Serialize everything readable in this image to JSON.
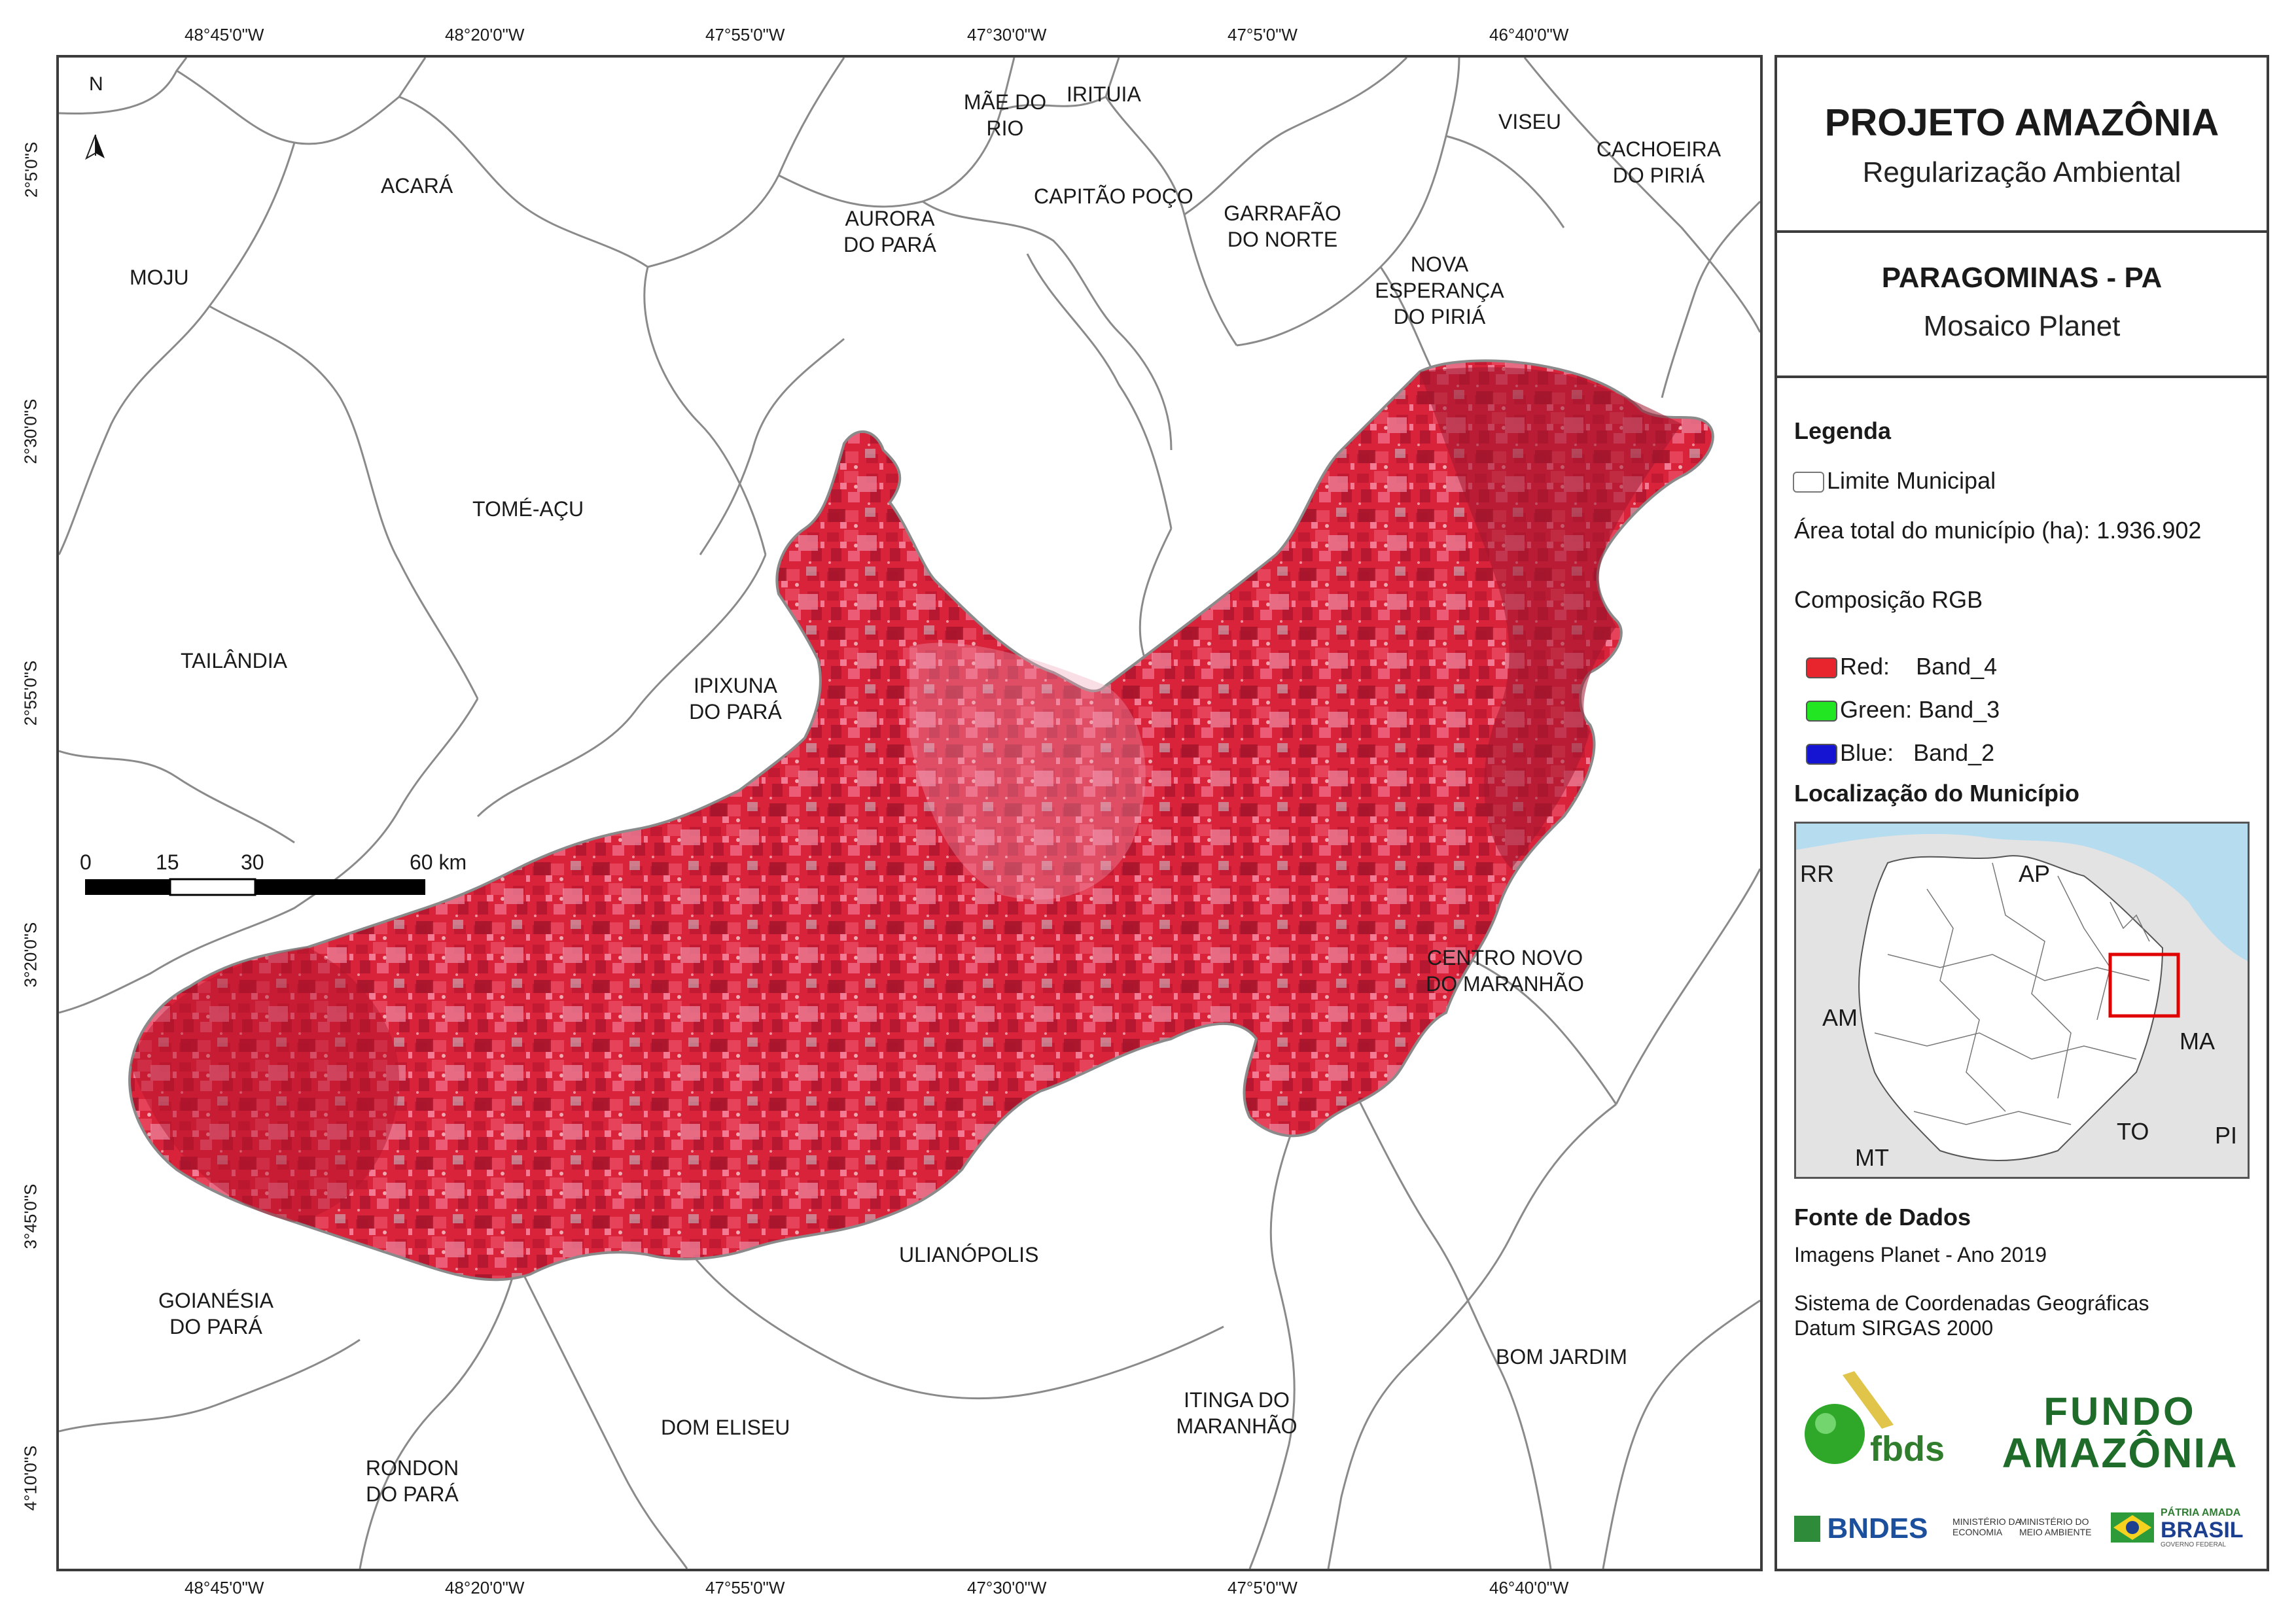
{
  "map": {
    "top_coords": [
      "48°45'0\"W",
      "48°20'0\"W",
      "47°55'0\"W",
      "47°30'0\"W",
      "47°5'0\"W",
      "46°40'0\"W"
    ],
    "bottom_coords": [
      "48°45'0\"W",
      "48°20'0\"W",
      "47°55'0\"W",
      "47°30'0\"W",
      "47°5'0\"W",
      "46°40'0\"W"
    ],
    "left_coords": [
      "2°5'0\"S",
      "2°30'0\"S",
      "2°55'0\"S",
      "3°20'0\"S",
      "3°45'0\"S",
      "4°10'0\"S"
    ],
    "north": "N",
    "municipalities": {
      "mae_do_rio_1": "MÃE DO",
      "mae_do_rio_2": "RIO",
      "irituia": "IRITUIA",
      "viseu": "VISEU",
      "cachoeira_1": "CACHOEIRA",
      "cachoeira_2": "DO PIRIÁ",
      "acara": "ACARÁ",
      "aurora_1": "AURORA",
      "aurora_2": "DO PARÁ",
      "capitao_poco": "CAPITÃO POÇO",
      "garrafao_1": "GARRAFÃO",
      "garrafao_2": "DO NORTE",
      "moju": "MOJU",
      "nova_esperanca_1": "NOVA",
      "nova_esperanca_2": "ESPERANÇA",
      "nova_esperanca_3": "DO PIRIÁ",
      "tome_acu": "TOMÉ-AÇU",
      "tailandia": "TAILÂNDIA",
      "ipixuna_1": "IPIXUNA",
      "ipixuna_2": "DO PARÁ",
      "centro_novo_1": "CENTRO NOVO",
      "centro_novo_2": "DO MARANHÃO",
      "ulianopolis": "ULIANÓPOLIS",
      "goianesia_1": "GOIANÉSIA",
      "goianesia_2": "DO PARÁ",
      "bom_jardim": "BOM JARDIM",
      "itinga_1": "ITINGA DO",
      "itinga_2": "MARANHÃO",
      "dom_eliseu": "DOM ELISEU",
      "rondon_1": "RONDON",
      "rondon_2": "DO PARÁ"
    },
    "scale": {
      "t0": "0",
      "t15": "15",
      "t30": "30",
      "t60": "60 km"
    }
  },
  "panel": {
    "title": "PROJETO AMAZÔNIA",
    "subtitle": "Regularização Ambiental",
    "place": "PARAGOMINAS - PA",
    "product": "Mosaico Planet",
    "legend_title": "Legenda",
    "legend_limit": "Limite Municipal",
    "area_total": "Área total do município (ha): 1.936.902",
    "rgb_title": "Composição RGB",
    "rgb_red": "Red:    Band_4",
    "rgb_green": "Green: Band_3",
    "rgb_blue": "Blue:   Band_2",
    "loc_title": "Localização do Município",
    "inset_labels": {
      "rr": "RR",
      "ap": "AP",
      "am": "AM",
      "ma": "MA",
      "to": "TO",
      "pi": "PI",
      "mt": "MT"
    },
    "sources_title": "Fonte de Dados",
    "source1": "Imagens Planet - Ano 2019",
    "source2": "Sistema de Coordenadas Geográficas",
    "source3": "Datum SIRGAS 2000",
    "logo_fbds": "fbds",
    "logo_fundo_1": "FUNDO",
    "logo_fundo_2": "AMAZÔNIA",
    "logo_bndes": "BNDES",
    "logo_min_econ_1": "MINISTÉRIO DA",
    "logo_min_econ_2": "ECONOMIA",
    "logo_min_ma_1": "MINISTÉRIO DO",
    "logo_min_ma_2": "MEIO AMBIENTE",
    "logo_patria_1": "PÁTRIA AMADA",
    "logo_patria_2": "BRASIL",
    "logo_patria_3": "GOVERNO FEDERAL"
  },
  "colors": {
    "red_band": "#e8242c",
    "green_band": "#22e622",
    "blue_band": "#1414d2",
    "ocean": "#b5dcef",
    "inset_grey": "#e3e3e3",
    "fundo_green": "#1f6b2a"
  }
}
